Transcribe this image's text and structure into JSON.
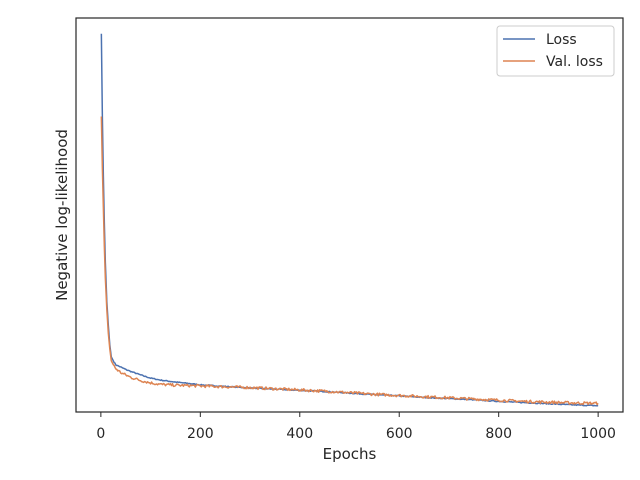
{
  "chart_data": {
    "type": "line",
    "title": "",
    "xlabel": "Epochs",
    "ylabel": "Negative log-likelihood",
    "xlim": [
      -50,
      1050
    ],
    "ylim": [
      0,
      100
    ],
    "x_ticks": [
      0,
      200,
      400,
      600,
      800,
      1000
    ],
    "y_ticks_shown": false,
    "grid": false,
    "legend_position": "top-right",
    "colors": {
      "Loss": "#4c72b0",
      "Val. loss": "#dd8452"
    },
    "series": [
      {
        "name": "Loss",
        "x": [
          1,
          3,
          5,
          7,
          9,
          12,
          15,
          18,
          21,
          25,
          30,
          40,
          50,
          60,
          80,
          100,
          120,
          150,
          180,
          200,
          250,
          300,
          350,
          400,
          450,
          500,
          550,
          600,
          650,
          700,
          750,
          800,
          850,
          900,
          950,
          1000
        ],
        "values": [
          96,
          75,
          60,
          48,
          38,
          28,
          22,
          17,
          14,
          13,
          12,
          11.4,
          10.8,
          10.3,
          9.4,
          8.6,
          8.1,
          7.6,
          7.2,
          6.9,
          6.5,
          6.1,
          5.8,
          5.5,
          5.2,
          4.8,
          4.4,
          4.1,
          3.7,
          3.4,
          3.1,
          2.7,
          2.4,
          2.1,
          1.8,
          1.6
        ]
      },
      {
        "name": "Val. loss",
        "x": [
          1,
          3,
          5,
          7,
          9,
          12,
          15,
          18,
          21,
          25,
          30,
          40,
          50,
          60,
          80,
          100,
          120,
          150,
          180,
          200,
          250,
          300,
          350,
          400,
          450,
          500,
          550,
          600,
          650,
          700,
          750,
          800,
          850,
          900,
          950,
          1000
        ],
        "values": [
          75,
          62,
          52,
          42,
          34,
          26,
          20,
          16,
          13,
          12,
          11,
          10,
          9.4,
          8.8,
          8,
          7.4,
          7,
          6.8,
          6.7,
          6.6,
          6.4,
          6.2,
          5.9,
          5.6,
          5.3,
          4.9,
          4.5,
          4.2,
          3.9,
          3.6,
          3.3,
          3,
          2.7,
          2.5,
          2.3,
          2.2
        ]
      }
    ]
  }
}
